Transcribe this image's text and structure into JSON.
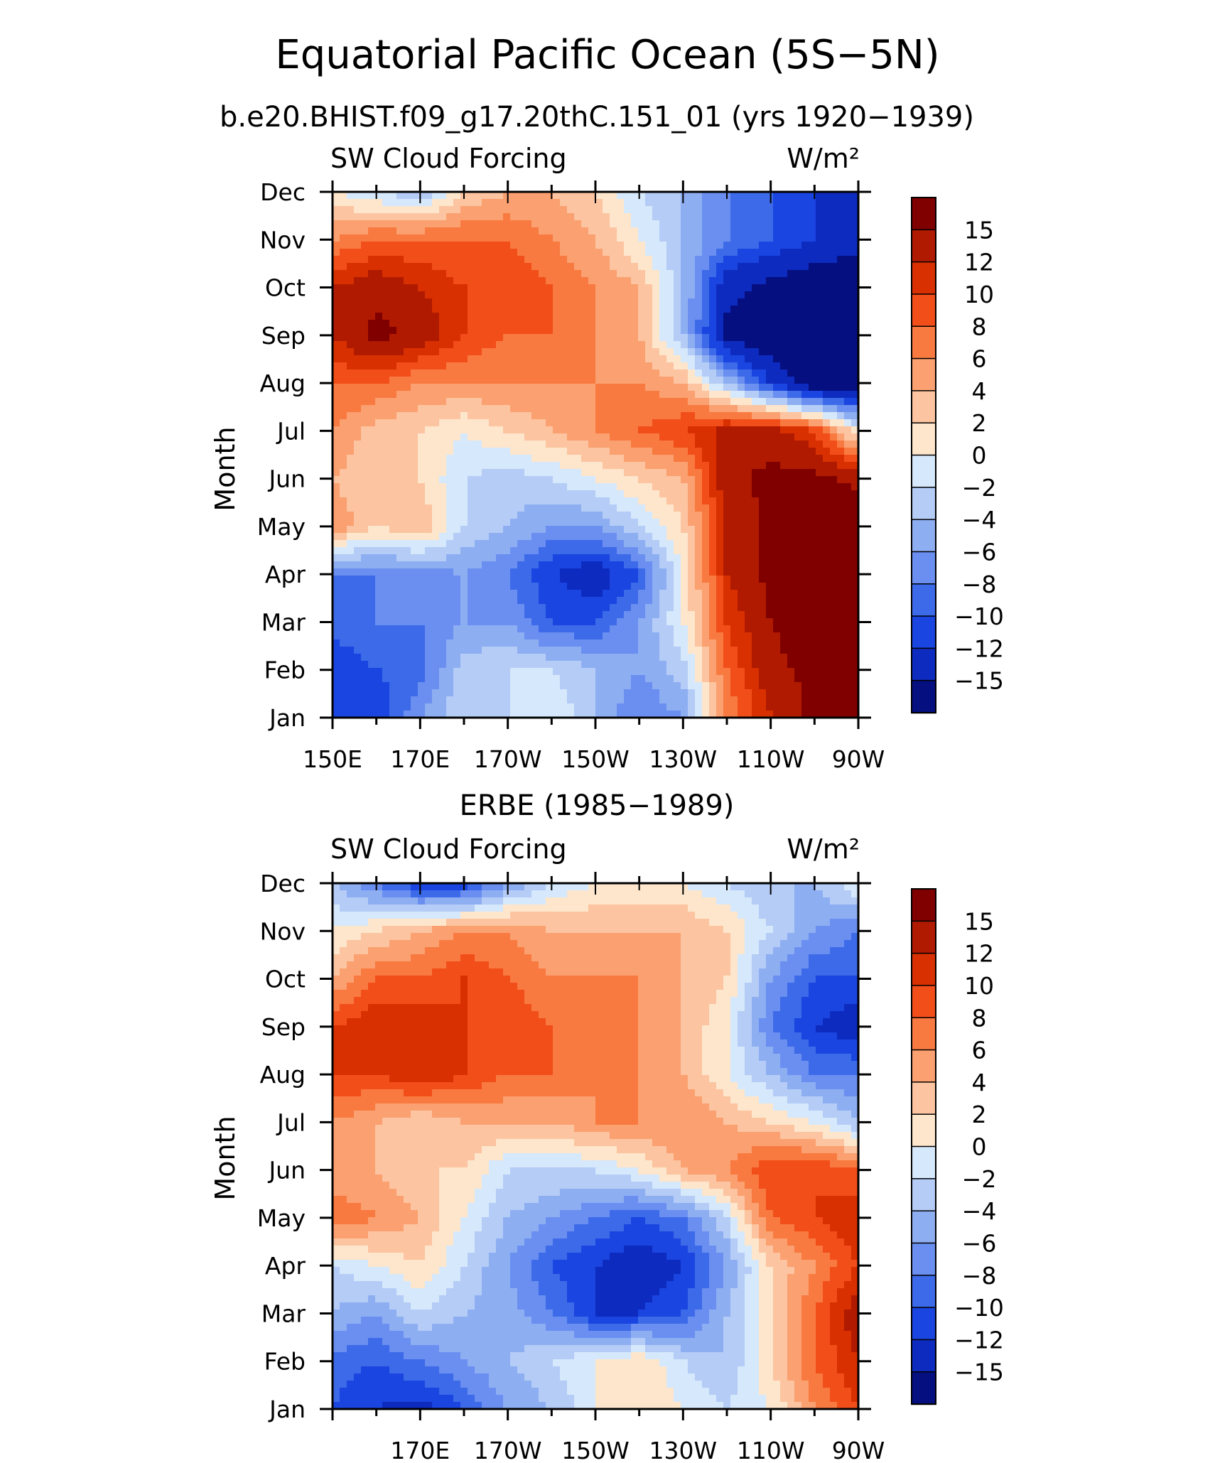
{
  "figure": {
    "title": "Equatorial Pacific Ocean (5S−5N)"
  },
  "chart_data": [
    {
      "type": "heatmap",
      "title": "b.e20.BHIST.f09_g17.20thC.151_01 (yrs 1920−1939)",
      "left_label": "SW Cloud Forcing",
      "right_label": "W/m²",
      "ylabel": "Month",
      "x_tick_labels": [
        "150E",
        "170E",
        "170W",
        "150W",
        "130W",
        "110W",
        "90W"
      ],
      "x_tick_values": [
        150,
        170,
        190,
        210,
        230,
        250,
        270
      ],
      "xlim": [
        150,
        270
      ],
      "y_tick_labels": [
        "Jan",
        "Feb",
        "Mar",
        "Apr",
        "May",
        "Jun",
        "Jul",
        "Aug",
        "Sep",
        "Oct",
        "Nov",
        "Dec"
      ],
      "ylim": [
        1,
        12
      ],
      "colorbar": {
        "levels": [
          15,
          12,
          10,
          8,
          6,
          4,
          2,
          0,
          "−2",
          "−4",
          "−6",
          "−8",
          "−10",
          "−12",
          "−15"
        ],
        "colors": [
          "#800000",
          "#b01a00",
          "#d83000",
          "#f24e1a",
          "#f87a40",
          "#fba070",
          "#fcc4a0",
          "#fde6cc",
          "#d6e8fb",
          "#b4ccf6",
          "#8eaef2",
          "#6a8ff0",
          "#3d6ae8",
          "#1a45e0",
          "#0e2bbf",
          "#050f80"
        ]
      },
      "values_x": [
        150,
        160,
        170,
        180,
        190,
        200,
        210,
        220,
        230,
        240,
        250,
        260,
        270
      ],
      "values": [
        [
          -12,
          -12,
          -6,
          -2,
          -2,
          0,
          -4,
          -8,
          -6,
          6,
          12,
          16,
          18
        ],
        [
          -12,
          -10,
          -9,
          -3,
          -2,
          -2,
          -4,
          -6,
          -3,
          8,
          14,
          16,
          18
        ],
        [
          -9,
          -8,
          -8,
          -6,
          -6,
          -10,
          -10,
          -6,
          0,
          10,
          15,
          17,
          18
        ],
        [
          -8,
          -8,
          -7,
          -6,
          -8,
          -12,
          -14,
          -10,
          0,
          12,
          16,
          17,
          18
        ],
        [
          6,
          2,
          4,
          -2,
          -4,
          -6,
          -6,
          -2,
          2,
          12,
          16,
          17,
          18
        ],
        [
          4,
          2,
          2,
          -2,
          -3,
          -2,
          0,
          2,
          4,
          14,
          16,
          16,
          14
        ],
        [
          6,
          3,
          2,
          0,
          2,
          4,
          6,
          8,
          10,
          13,
          13,
          10,
          0
        ],
        [
          8,
          8,
          6,
          6,
          6,
          6,
          6,
          6,
          4,
          -4,
          -12,
          -18,
          -18
        ],
        [
          12,
          16,
          14,
          10,
          8,
          8,
          6,
          4,
          -4,
          -16,
          -18,
          -18,
          -18
        ],
        [
          12,
          14,
          12,
          10,
          10,
          8,
          6,
          4,
          -4,
          -14,
          -16,
          -18,
          -18
        ],
        [
          6,
          8,
          8,
          8,
          8,
          6,
          4,
          0,
          -4,
          -8,
          -10,
          -12,
          -14
        ],
        [
          0,
          -2,
          -4,
          2,
          4,
          4,
          2,
          -2,
          -4,
          -8,
          -10,
          -12,
          -12
        ]
      ]
    },
    {
      "type": "heatmap",
      "title": "ERBE (1985−1989)",
      "left_label": "SW Cloud Forcing",
      "right_label": "W/m²",
      "ylabel": "Month",
      "x_tick_labels": [
        "170E",
        "170W",
        "150W",
        "130W",
        "110W",
        "90W"
      ],
      "x_tick_values": [
        170,
        190,
        210,
        230,
        250,
        270
      ],
      "xlim": [
        150,
        270
      ],
      "y_tick_labels": [
        "Jan",
        "Feb",
        "Mar",
        "Apr",
        "May",
        "Jun",
        "Jul",
        "Aug",
        "Sep",
        "Oct",
        "Nov",
        "Dec"
      ],
      "ylim": [
        1,
        12
      ],
      "colorbar": {
        "levels": [
          15,
          12,
          10,
          8,
          6,
          4,
          2,
          0,
          "−2",
          "−4",
          "−6",
          "−8",
          "−10",
          "−12",
          "−15"
        ],
        "colors": [
          "#800000",
          "#b01a00",
          "#d83000",
          "#f24e1a",
          "#f87a40",
          "#fba070",
          "#fcc4a0",
          "#fde6cc",
          "#d6e8fb",
          "#b4ccf6",
          "#8eaef2",
          "#6a8ff0",
          "#3d6ae8",
          "#1a45e0",
          "#0e2bbf",
          "#050f80"
        ]
      },
      "values_x": [
        150,
        160,
        170,
        180,
        190,
        200,
        210,
        220,
        230,
        240,
        250,
        260,
        270
      ],
      "values": [
        [
          -10,
          -12,
          -13,
          -10,
          -6,
          -4,
          0,
          2,
          0,
          -2,
          0,
          6,
          10
        ],
        [
          -9,
          -10,
          -8,
          -6,
          -4,
          -2,
          0,
          2,
          -2,
          -4,
          2,
          8,
          12
        ],
        [
          -4,
          -6,
          -2,
          -4,
          -5,
          -8,
          -12,
          -12,
          -10,
          -4,
          2,
          8,
          14
        ],
        [
          -2,
          0,
          2,
          -2,
          -6,
          -10,
          -12,
          -14,
          -12,
          -6,
          2,
          6,
          10
        ],
        [
          8,
          6,
          4,
          0,
          -4,
          -6,
          -8,
          -10,
          -8,
          -2,
          8,
          10,
          12
        ],
        [
          4,
          4,
          2,
          2,
          -2,
          -2,
          -2,
          0,
          4,
          6,
          10,
          10,
          8
        ],
        [
          6,
          4,
          2,
          4,
          4,
          4,
          6,
          6,
          6,
          4,
          2,
          0,
          -4
        ],
        [
          10,
          10,
          12,
          10,
          8,
          8,
          6,
          6,
          4,
          0,
          -4,
          -8,
          -8
        ],
        [
          10,
          12,
          12,
          10,
          10,
          8,
          6,
          6,
          4,
          0,
          -8,
          -12,
          -14
        ],
        [
          4,
          8,
          8,
          10,
          8,
          6,
          6,
          6,
          4,
          2,
          -6,
          -10,
          -10
        ],
        [
          0,
          2,
          4,
          6,
          6,
          4,
          4,
          4,
          4,
          2,
          -2,
          -6,
          -8
        ],
        [
          -4,
          -8,
          -12,
          -12,
          -6,
          -2,
          0,
          0,
          0,
          -2,
          -4,
          -4,
          0
        ]
      ]
    }
  ]
}
